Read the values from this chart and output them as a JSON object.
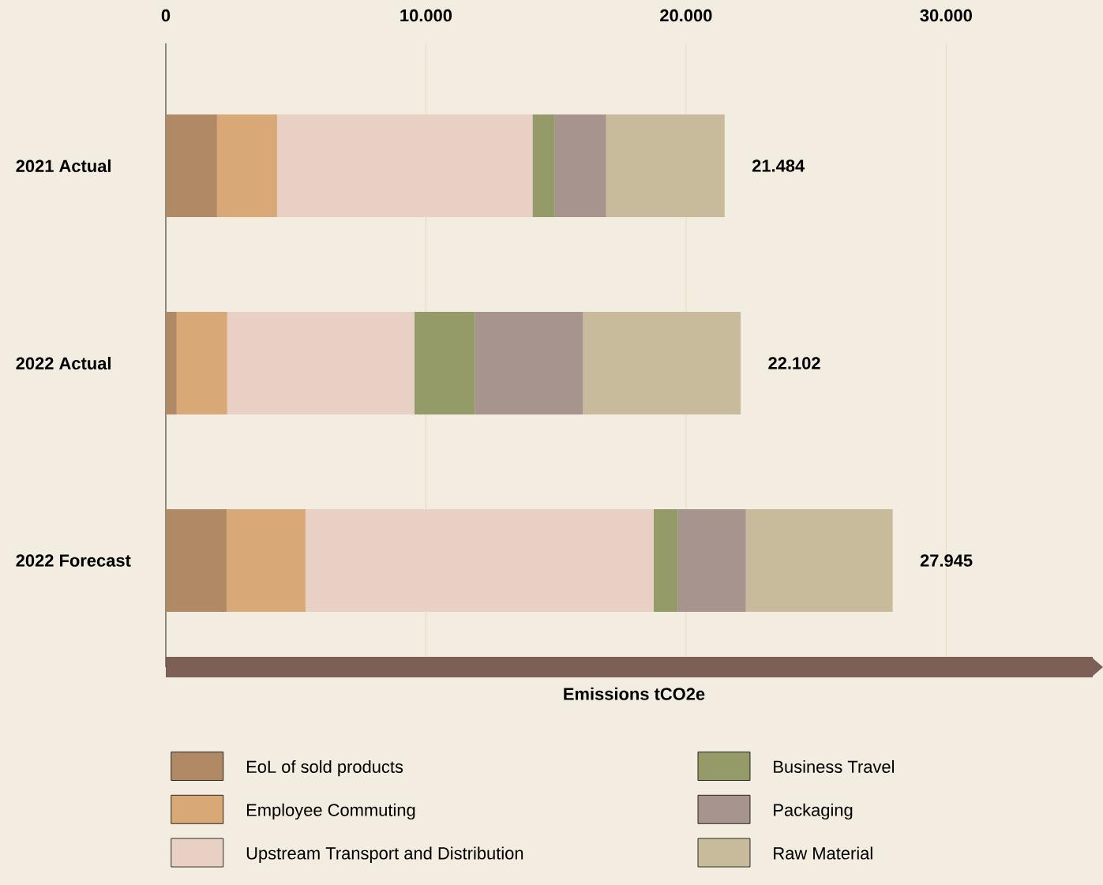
{
  "chart_data": {
    "type": "bar",
    "orientation": "horizontal",
    "stacked": true,
    "categories": [
      "2021 Actual",
      "2022 Actual",
      "2022 Forecast"
    ],
    "series": [
      {
        "name": "EoL of sold products",
        "color": "#b08a64",
        "values": [
          1970,
          418,
          2336
        ]
      },
      {
        "name": "Employee Commuting",
        "color": "#d9a877",
        "values": [
          2308,
          1942,
          3034
        ]
      },
      {
        "name": "Upstream Transport and Distribution",
        "color": "#e8d0c4",
        "values": [
          9819,
          7198,
          13381
        ]
      },
      {
        "name": "Business Travel",
        "color": "#949a68",
        "values": [
          862,
          2330,
          941
        ]
      },
      {
        "name": "Packaging",
        "color": "#a8948f",
        "values": [
          1970,
          4152,
          2609
        ]
      },
      {
        "name": "Raw Material",
        "color": "#c8bb9c",
        "values": [
          4555,
          6062,
          5644
        ]
      }
    ],
    "totals": [
      "21.484",
      "22.102",
      "27.945"
    ],
    "xlim": [
      0,
      36000
    ],
    "xticks": [
      0,
      {
        "value": 10000,
        "label": "10.000"
      },
      {
        "value": 20000,
        "label": "20.000"
      },
      {
        "value": 30000,
        "label": "30.000"
      }
    ],
    "xlabel": "Emissions tCO2e",
    "grid": "x",
    "legend": "bottom"
  }
}
